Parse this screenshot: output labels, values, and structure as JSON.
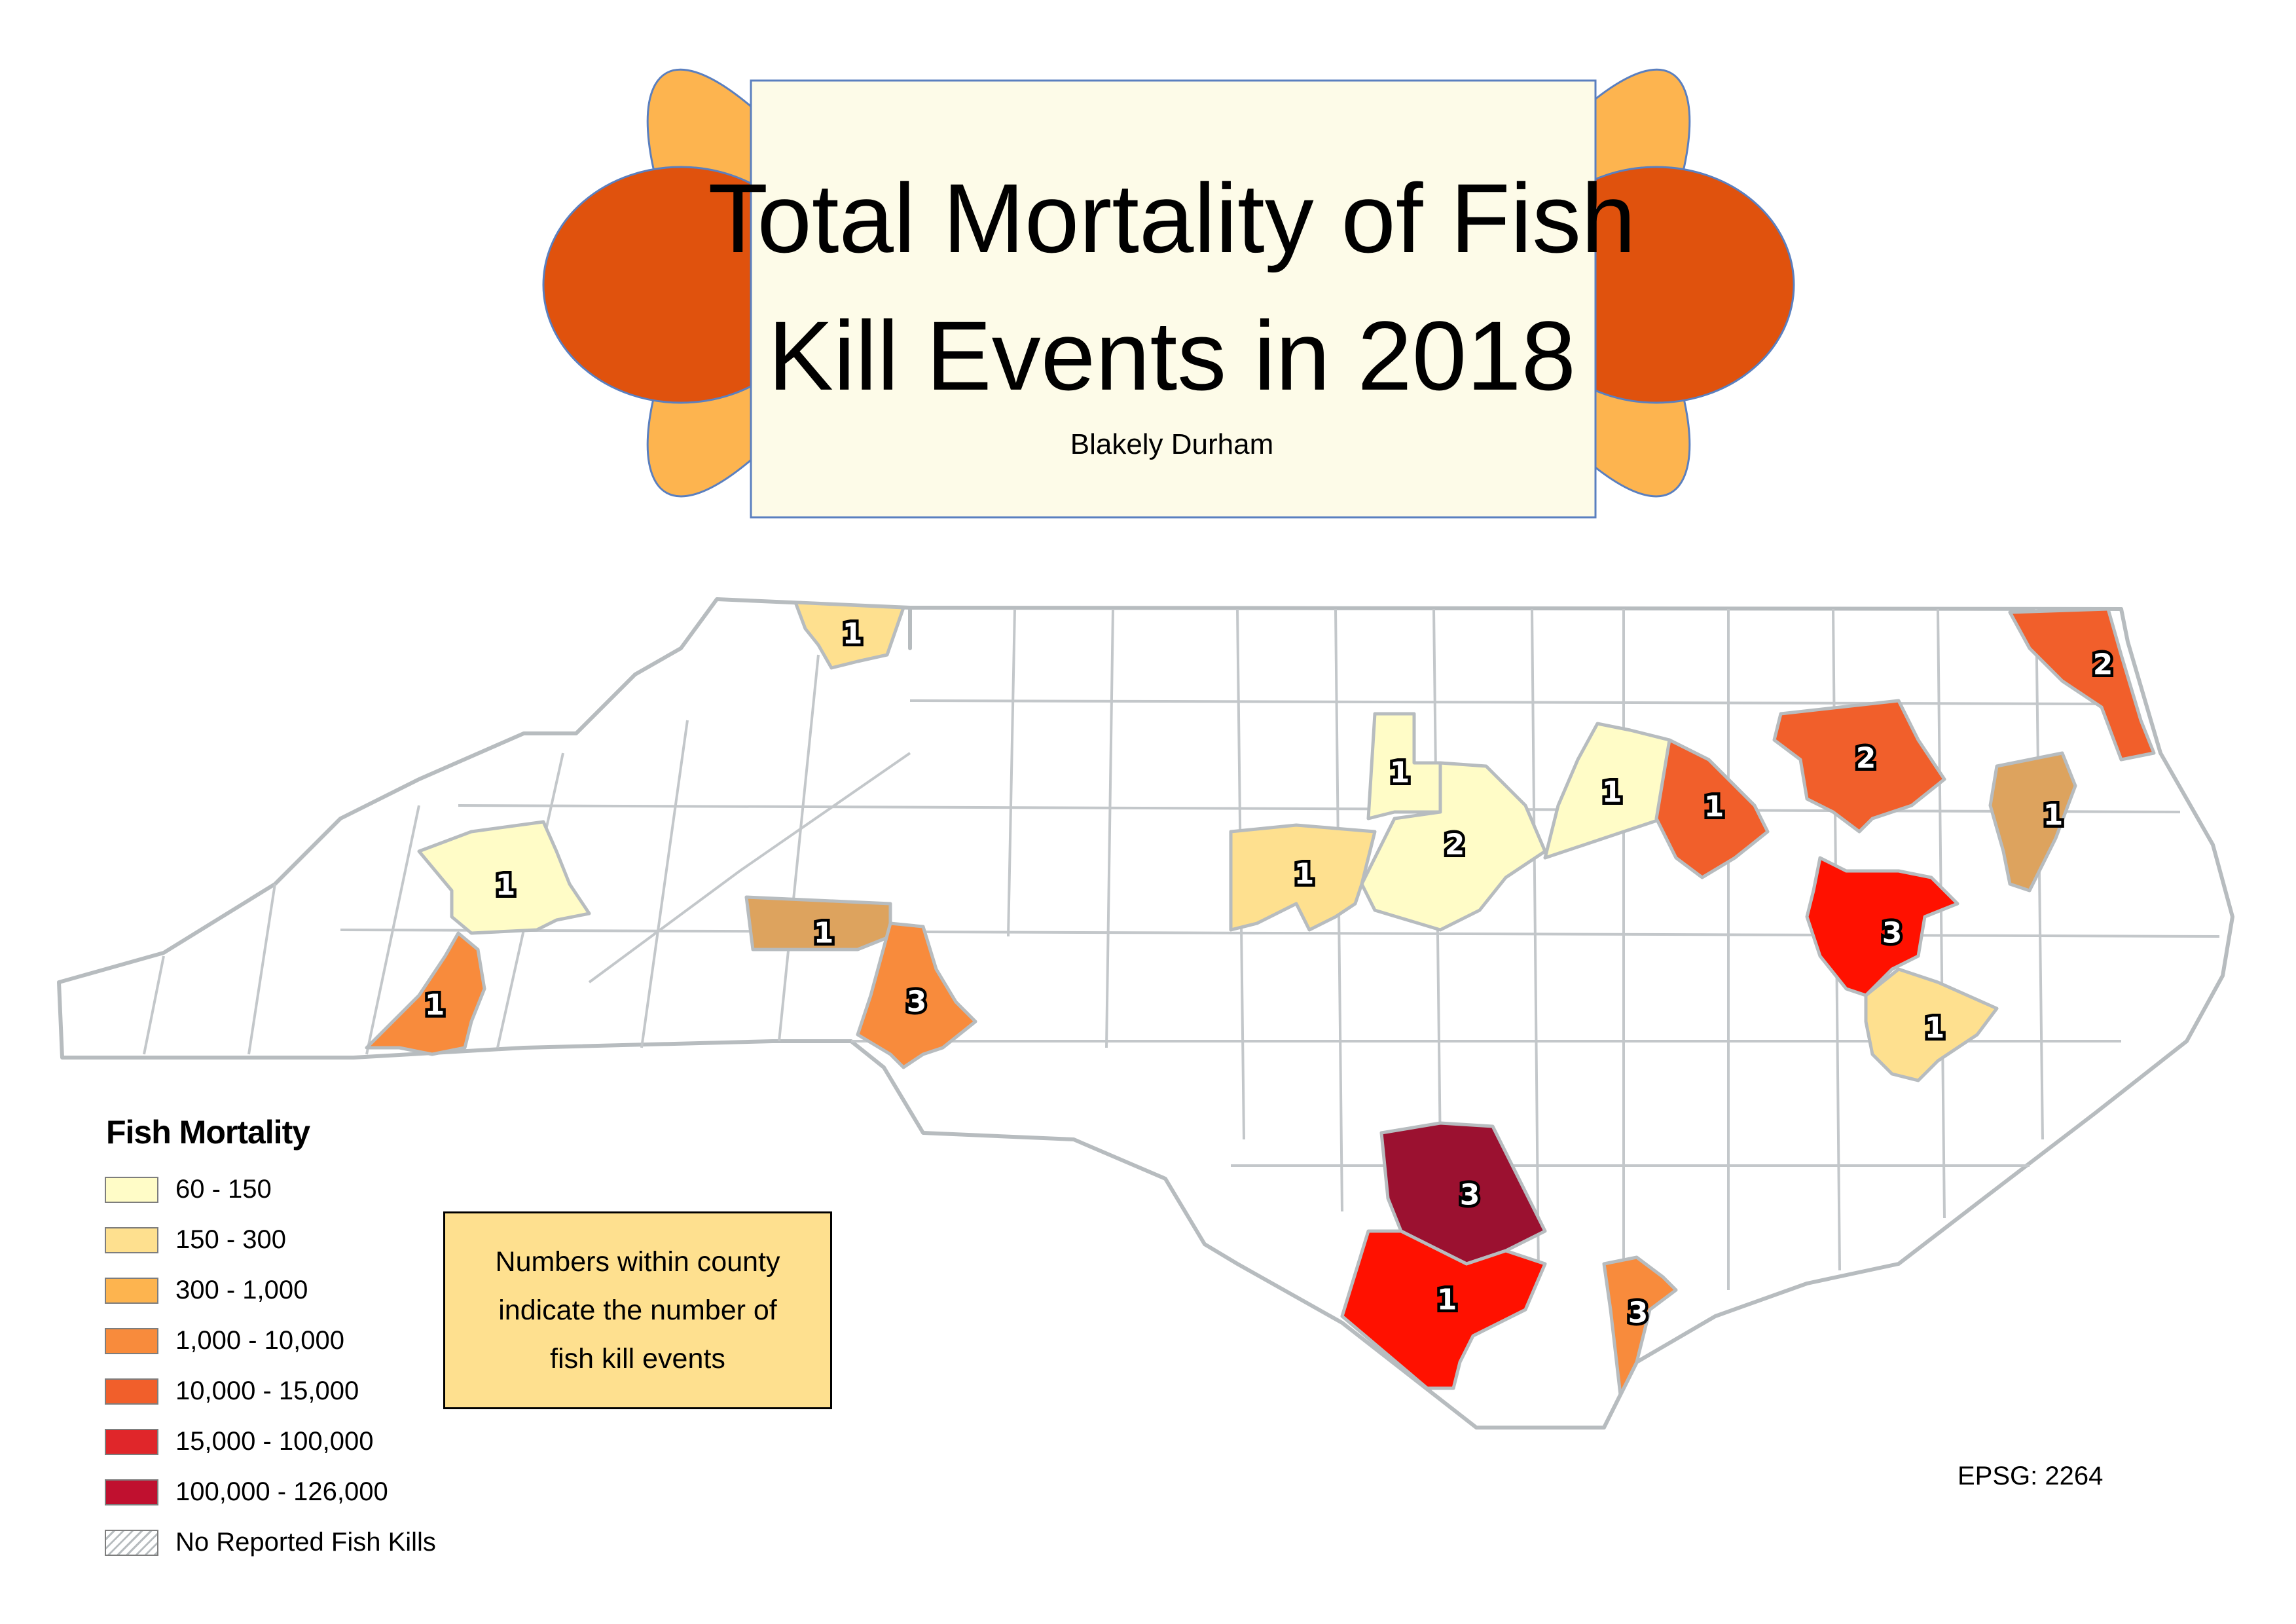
{
  "title": {
    "line1": "Total Mortality of Fish",
    "line2": "Kill Events in 2018",
    "author": "Blakely Durham"
  },
  "colors": {
    "60 - 150": "#fffcc7",
    "150 - 300": "#fee08f",
    "300 - 1,000": "#fdb44f",
    "1,000 - 10,000": "#f88b3c",
    "10,000 - 15,000": "#f15f2b",
    "15,000 - 100,000": "#e0262a",
    "100,000 - 126,000": "#c0102f",
    "hatch": "#b7bcbf",
    "title_box": "#fdfbe8",
    "title_petal_outer": "#fdb44f",
    "title_petal_inner": "#e0520d"
  },
  "legend": {
    "title": "Fish Mortality",
    "items": [
      {
        "label": "60 - 150",
        "color": "#fffcc7"
      },
      {
        "label": "150 - 300",
        "color": "#fee08f"
      },
      {
        "label": "300 - 1,000",
        "color": "#fdb44f"
      },
      {
        "label": "1,000 - 10,000",
        "color": "#f88b3c"
      },
      {
        "label": "10,000 - 15,000",
        "color": "#f15f2b"
      },
      {
        "label": "15,000 - 100,000",
        "color": "#e0262a"
      },
      {
        "label": "100,000 - 126,000",
        "color": "#c0102f"
      },
      {
        "label": "No Reported Fish Kills",
        "color": "hatch"
      }
    ]
  },
  "note": {
    "line1": "Numbers within county",
    "line2": "indicate the number of",
    "line3": "fish kill events"
  },
  "epsg": "EPSG: 2264",
  "counties": [
    {
      "events": "1",
      "color": "#fee08f"
    },
    {
      "events": "2",
      "color": "#f15f2b"
    },
    {
      "events": "1",
      "color": "#fffcc7"
    },
    {
      "events": "2",
      "color": "#fffcc7"
    },
    {
      "events": "1",
      "color": "#fffcc7"
    },
    {
      "events": "1",
      "color": "#f15f2b"
    },
    {
      "events": "2",
      "color": "#f15f2b"
    },
    {
      "events": "1",
      "color": "#dda35e"
    },
    {
      "events": "1",
      "color": "#fffcc7"
    },
    {
      "events": "1",
      "color": "#fee08f"
    },
    {
      "events": "3",
      "color": "#ff1100"
    },
    {
      "events": "1",
      "color": "#fee08f"
    },
    {
      "events": "1",
      "color": "#dda35e"
    },
    {
      "events": "3",
      "color": "#f88b3c"
    },
    {
      "events": "1",
      "color": "#f88b3c"
    },
    {
      "events": "3",
      "color": "#9b1130"
    },
    {
      "events": "1",
      "color": "#ff1100"
    },
    {
      "events": "3",
      "color": "#f88b3c"
    }
  ]
}
